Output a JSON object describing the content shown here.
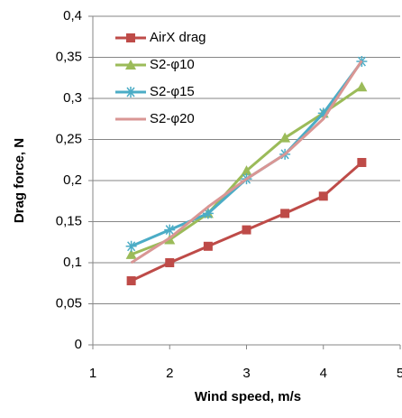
{
  "chart_data": {
    "type": "line",
    "x": [
      1.5,
      2,
      2.5,
      3,
      3.5,
      4,
      4.5
    ],
    "series": [
      {
        "name": "AirX drag",
        "color": "#be4b48",
        "marker": "square",
        "values": [
          0.078,
          0.1,
          0.12,
          0.14,
          0.16,
          0.181,
          0.222
        ]
      },
      {
        "name": "S2-φ10",
        "color": "#9bbb59",
        "marker": "triangle",
        "values": [
          0.11,
          0.128,
          0.16,
          0.212,
          0.252,
          0.282,
          0.314
        ]
      },
      {
        "name": "S2-φ15",
        "color": "#4bacc6",
        "marker": "asterisk",
        "values": [
          0.12,
          0.14,
          0.16,
          0.202,
          0.232,
          0.282,
          0.345
        ]
      },
      {
        "name": "S2-φ20",
        "color": "#d99694",
        "marker": "none",
        "values": [
          0.1,
          0.13,
          0.168,
          0.202,
          0.232,
          0.275,
          0.346
        ]
      }
    ],
    "xlabel": "Wind speed, m/s",
    "ylabel": "Drag force, N",
    "xlim": [
      1,
      5
    ],
    "xticks": [
      1,
      2,
      3,
      4,
      5
    ],
    "ylim": [
      0,
      0.4
    ],
    "yticks": [
      0,
      {
        "value": 0.05,
        "label": "0,05"
      },
      {
        "value": 0.1,
        "label": "0,1"
      },
      {
        "value": 0.15,
        "label": "0,15"
      },
      {
        "value": 0.2,
        "label": "0,2"
      },
      {
        "value": 0.25,
        "label": "0,25"
      },
      {
        "value": 0.3,
        "label": "0,3"
      },
      {
        "value": 0.35,
        "label": "0,35"
      },
      {
        "value": 0.4,
        "label": "0,4"
      }
    ],
    "grid": true
  }
}
